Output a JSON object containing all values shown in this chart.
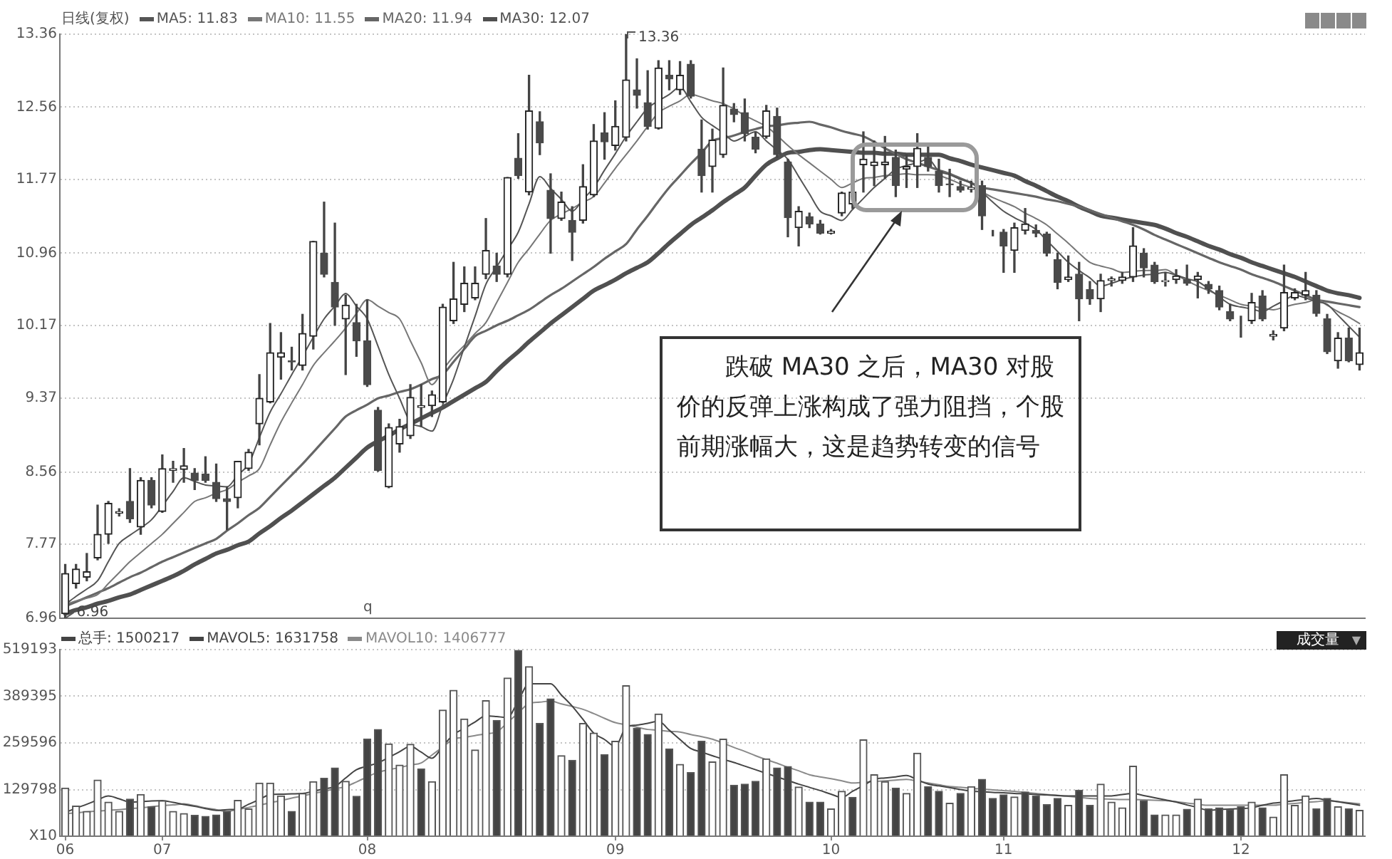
{
  "chart_data": [
    {
      "type": "candlestick",
      "title": "日线(复权)",
      "legend": "top left",
      "tick_labels": "y",
      "grid": "y",
      "categories": [
        "06",
        null,
        null,
        null,
        null,
        null,
        null,
        null,
        null,
        "07",
        null,
        null,
        null,
        null,
        null,
        null,
        null,
        null,
        null,
        null,
        null,
        null,
        null,
        null,
        null,
        null,
        null,
        null,
        "08",
        null,
        null,
        null,
        null,
        null,
        null,
        null,
        null,
        null,
        null,
        null,
        null,
        null,
        null,
        null,
        null,
        null,
        null,
        null,
        null,
        null,
        null,
        "09",
        null,
        null,
        null,
        null,
        null,
        null,
        null,
        null,
        null,
        null,
        null,
        null,
        null,
        null,
        null,
        null,
        null,
        null,
        null,
        "10",
        null,
        null,
        null,
        null,
        null,
        null,
        null,
        null,
        null,
        null,
        null,
        null,
        null,
        null,
        null,
        "11",
        null,
        null,
        null,
        null,
        null,
        null,
        null,
        null,
        null,
        null,
        null,
        null,
        null,
        null,
        null,
        null,
        null,
        null,
        null,
        null,
        null,
        "12",
        null,
        null,
        null,
        null,
        null,
        null,
        null,
        null,
        null,
        null,
        null
      ],
      "ylim": [
        6.96,
        13.36
      ],
      "yticks": [
        6.96,
        7.77,
        8.56,
        9.37,
        10.17,
        10.96,
        11.77,
        12.56,
        13.36
      ],
      "series": [
        {
          "ohlc": [
            [
              7.01,
              7.55,
              6.96,
              7.45
            ],
            [
              7.34,
              7.55,
              7.29,
              7.5
            ],
            [
              7.41,
              7.67,
              7.37,
              7.47
            ],
            [
              7.62,
              8.2,
              7.6,
              7.88
            ],
            [
              7.88,
              8.24,
              7.78,
              8.22
            ],
            [
              8.11,
              8.16,
              8.08,
              8.13
            ],
            [
              8.24,
              8.6,
              8.01,
              8.05
            ],
            [
              7.96,
              8.5,
              7.88,
              8.47
            ],
            [
              8.47,
              8.5,
              8.17,
              8.2
            ],
            [
              8.13,
              8.75,
              8.12,
              8.6
            ],
            [
              8.58,
              8.68,
              8.45,
              8.6
            ],
            [
              8.59,
              8.82,
              8.45,
              8.63
            ],
            [
              8.55,
              8.6,
              8.37,
              8.47
            ],
            [
              8.54,
              8.73,
              8.45,
              8.47
            ],
            [
              8.45,
              8.65,
              8.24,
              8.27
            ],
            [
              8.27,
              8.4,
              7.93,
              8.24
            ],
            [
              8.28,
              8.68,
              8.17,
              8.68
            ],
            [
              8.6,
              8.81,
              8.58,
              8.78
            ],
            [
              9.09,
              9.63,
              8.86,
              9.37
            ],
            [
              9.33,
              10.19,
              9.32,
              9.87
            ],
            [
              9.82,
              10.09,
              9.58,
              9.87
            ],
            [
              9.78,
              9.93,
              9.68,
              9.77
            ],
            [
              9.73,
              10.29,
              9.68,
              10.08
            ],
            [
              10.05,
              11.09,
              9.91,
              11.09
            ],
            [
              10.96,
              11.52,
              10.7,
              10.73
            ],
            [
              10.64,
              11.29,
              10.17,
              10.37
            ],
            [
              10.24,
              10.5,
              9.63,
              10.39
            ],
            [
              10.2,
              10.4,
              9.83,
              10.0
            ],
            [
              10.0,
              10.45,
              9.5,
              9.52
            ],
            [
              9.24,
              9.27,
              8.57,
              8.58
            ],
            [
              8.4,
              9.09,
              8.39,
              9.05
            ],
            [
              8.87,
              9.14,
              8.78,
              9.06
            ],
            [
              8.96,
              9.52,
              8.93,
              9.38
            ],
            [
              9.27,
              9.52,
              9.06,
              9.29
            ],
            [
              9.29,
              9.45,
              9.17,
              9.41
            ],
            [
              9.33,
              10.4,
              9.32,
              10.37
            ],
            [
              10.22,
              10.86,
              10.19,
              10.46
            ],
            [
              10.4,
              10.81,
              10.32,
              10.63
            ],
            [
              10.47,
              10.81,
              10.45,
              10.63
            ],
            [
              10.73,
              11.34,
              10.68,
              10.99
            ],
            [
              10.82,
              10.96,
              10.65,
              10.73
            ],
            [
              10.73,
              11.79,
              10.7,
              11.79
            ],
            [
              12.0,
              12.27,
              11.78,
              11.81
            ],
            [
              11.63,
              12.91,
              11.6,
              12.52
            ],
            [
              12.4,
              12.51,
              12.04,
              12.17
            ],
            [
              11.65,
              11.83,
              10.96,
              11.34
            ],
            [
              11.34,
              11.63,
              11.32,
              11.52
            ],
            [
              11.32,
              11.47,
              10.88,
              11.19
            ],
            [
              11.32,
              11.93,
              11.29,
              11.69
            ],
            [
              11.6,
              12.37,
              11.58,
              12.19
            ],
            [
              12.28,
              12.5,
              11.99,
              12.18
            ],
            [
              12.14,
              12.63,
              12.09,
              12.35
            ],
            [
              12.23,
              13.36,
              12.19,
              12.86
            ],
            [
              12.75,
              13.09,
              12.55,
              12.69
            ],
            [
              12.61,
              12.96,
              12.32,
              12.35
            ],
            [
              12.33,
              13.07,
              12.32,
              12.99
            ],
            [
              12.91,
              13.07,
              12.75,
              12.87
            ],
            [
              12.75,
              13.06,
              12.7,
              12.91
            ],
            [
              13.03,
              13.07,
              12.66,
              12.68
            ],
            [
              12.1,
              12.42,
              11.63,
              11.81
            ],
            [
              11.91,
              12.32,
              11.63,
              12.2
            ],
            [
              12.04,
              12.99,
              12.01,
              12.58
            ],
            [
              12.54,
              12.6,
              12.4,
              12.48
            ],
            [
              12.5,
              12.65,
              12.19,
              12.27
            ],
            [
              12.23,
              12.29,
              12.06,
              12.1
            ],
            [
              12.24,
              12.58,
              12.22,
              12.52
            ],
            [
              12.46,
              12.55,
              12.01,
              12.04
            ],
            [
              11.96,
              11.99,
              11.14,
              11.35
            ],
            [
              11.24,
              11.47,
              11.04,
              11.42
            ],
            [
              11.36,
              11.4,
              11.24,
              11.28
            ],
            [
              11.28,
              11.32,
              11.17,
              11.18
            ],
            [
              11.18,
              11.22,
              11.17,
              11.2
            ],
            [
              11.4,
              11.63,
              11.37,
              11.62
            ],
            [
              11.5,
              11.68,
              11.45,
              11.63
            ],
            [
              11.93,
              12.29,
              11.63,
              11.99
            ],
            [
              11.92,
              12.19,
              11.7,
              11.96
            ],
            [
              11.93,
              12.24,
              11.78,
              11.96
            ],
            [
              12.01,
              12.09,
              11.58,
              11.7
            ],
            [
              11.88,
              12.04,
              11.68,
              11.91
            ],
            [
              11.91,
              12.27,
              11.68,
              12.11
            ],
            [
              12.01,
              12.14,
              11.86,
              11.91
            ],
            [
              11.86,
              11.99,
              11.63,
              11.7
            ],
            [
              11.72,
              11.88,
              11.58,
              11.71
            ],
            [
              11.69,
              11.75,
              11.63,
              11.65
            ],
            [
              11.66,
              11.75,
              11.63,
              11.68
            ],
            [
              11.7,
              11.75,
              11.22,
              11.37
            ],
            [
              11.19,
              11.21,
              11.15,
              11.19
            ],
            [
              11.19,
              11.22,
              10.75,
              11.04
            ],
            [
              10.99,
              11.29,
              10.75,
              11.24
            ],
            [
              11.21,
              11.45,
              11.17,
              11.28
            ],
            [
              11.21,
              11.27,
              11.14,
              11.18
            ],
            [
              11.17,
              11.19,
              10.93,
              10.96
            ],
            [
              10.89,
              10.96,
              10.57,
              10.64
            ],
            [
              10.67,
              10.93,
              10.65,
              10.7
            ],
            [
              10.73,
              10.86,
              10.22,
              10.46
            ],
            [
              10.56,
              10.65,
              10.4,
              10.46
            ],
            [
              10.46,
              10.73,
              10.32,
              10.66
            ],
            [
              10.66,
              10.7,
              10.6,
              10.68
            ],
            [
              10.66,
              10.75,
              10.63,
              10.7
            ],
            [
              10.7,
              11.24,
              10.65,
              11.04
            ],
            [
              10.96,
              11.01,
              10.7,
              10.8
            ],
            [
              10.83,
              10.86,
              10.63,
              10.65
            ],
            [
              10.65,
              10.75,
              10.6,
              10.66
            ],
            [
              10.67,
              10.78,
              10.63,
              10.71
            ],
            [
              10.67,
              10.83,
              10.61,
              10.63
            ],
            [
              10.67,
              10.75,
              10.47,
              10.71
            ],
            [
              10.62,
              10.65,
              10.52,
              10.57
            ],
            [
              10.55,
              10.6,
              10.34,
              10.37
            ],
            [
              10.32,
              10.4,
              10.22,
              10.24
            ],
            [
              10.2,
              10.27,
              10.04,
              10.2
            ],
            [
              10.22,
              10.52,
              10.19,
              10.42
            ],
            [
              10.49,
              10.55,
              10.22,
              10.24
            ],
            [
              10.05,
              10.11,
              10.01,
              10.07
            ],
            [
              10.14,
              10.83,
              10.11,
              10.53
            ],
            [
              10.47,
              10.57,
              10.45,
              10.53
            ],
            [
              10.5,
              10.75,
              10.45,
              10.55
            ],
            [
              10.5,
              10.55,
              10.27,
              10.3
            ],
            [
              10.24,
              10.29,
              9.86,
              9.88
            ],
            [
              9.78,
              10.09,
              9.7,
              10.03
            ],
            [
              10.03,
              10.14,
              9.77,
              9.78
            ],
            [
              9.74,
              10.14,
              9.68,
              9.87
            ]
          ]
        },
        {
          "type": "line",
          "name": "MA5: 11.83",
          "color": "#555555",
          "values": [
            7.11,
            7.2,
            7.28,
            7.37,
            7.58,
            7.78,
            7.87,
            7.95,
            8.04,
            8.19,
            8.35,
            8.5,
            8.46,
            8.42,
            8.41,
            8.4,
            8.53,
            8.65,
            8.94,
            9.22,
            9.42,
            9.63,
            9.83,
            10.04,
            10.24,
            10.38,
            10.52,
            10.38,
            10.24,
            9.94,
            9.63,
            9.37,
            9.11,
            9.06,
            9.01,
            9.3,
            9.58,
            9.93,
            10.27,
            10.62,
            10.81,
            11.0,
            11.19,
            11.5,
            11.8,
            11.67,
            11.55,
            11.42,
            11.55,
            11.68,
            11.87,
            12.05,
            12.24,
            12.4,
            12.55,
            12.63,
            12.7,
            12.78,
            12.62,
            12.45,
            12.36,
            12.28,
            12.19,
            12.24,
            12.29,
            12.19,
            12.09,
            11.99,
            11.8,
            11.61,
            11.42,
            11.37,
            11.32,
            11.44,
            11.56,
            11.68,
            11.78,
            11.88,
            11.92,
            11.95,
            11.99,
            11.86,
            11.82,
            11.77,
            11.73,
            11.63,
            11.52,
            11.42,
            11.35,
            11.29,
            11.22,
            11.1,
            10.98,
            10.86,
            10.77,
            10.69,
            10.6,
            10.63,
            10.67,
            10.7,
            10.72,
            10.73,
            10.75,
            10.72,
            10.68,
            10.65,
            10.57,
            10.48,
            10.4,
            10.37,
            10.35,
            10.32,
            10.38,
            10.44,
            10.5,
            10.47,
            10.43,
            10.4,
            10.28,
            10.16,
            10.04
          ]
        },
        {
          "type": "line",
          "name": "MA10: 11.55",
          "color": "#777777",
          "values": [
            7.11,
            7.15,
            7.18,
            7.22,
            7.34,
            7.46,
            7.58,
            7.68,
            7.78,
            7.88,
            8.0,
            8.12,
            8.24,
            8.28,
            8.33,
            8.37,
            8.45,
            8.52,
            8.6,
            8.86,
            9.11,
            9.32,
            9.52,
            9.73,
            9.87,
            10.0,
            10.14,
            10.3,
            10.45,
            10.38,
            10.31,
            10.24,
            10.0,
            9.76,
            9.52,
            9.68,
            9.83,
            9.95,
            10.08,
            10.2,
            10.42,
            10.64,
            10.86,
            11.01,
            11.17,
            11.32,
            11.39,
            11.45,
            11.52,
            11.58,
            11.73,
            11.89,
            12.04,
            12.19,
            12.35,
            12.5,
            12.57,
            12.63,
            12.7,
            12.67,
            12.63,
            12.6,
            12.54,
            12.47,
            12.41,
            12.35,
            12.25,
            12.14,
            12.04,
            11.95,
            11.86,
            11.77,
            11.68,
            11.73,
            11.78,
            11.79,
            11.81,
            11.82,
            11.83,
            11.82,
            11.82,
            11.81,
            11.77,
            11.72,
            11.68,
            11.63,
            11.57,
            11.52,
            11.47,
            11.4,
            11.34,
            11.27,
            11.17,
            11.07,
            10.96,
            10.86,
            10.82,
            10.79,
            10.75,
            10.76,
            10.77,
            10.77,
            10.78,
            10.72,
            10.66,
            10.6,
            10.55,
            10.5,
            10.45,
            10.4,
            10.38,
            10.36,
            10.34,
            10.37,
            10.4,
            10.42,
            10.45,
            10.39,
            10.32,
            10.26,
            10.19
          ]
        },
        {
          "type": "line",
          "name": "MA20: 11.94",
          "color": "#666666",
          "values": [
            7.09,
            7.14,
            7.19,
            7.24,
            7.29,
            7.35,
            7.41,
            7.46,
            7.52,
            7.58,
            7.63,
            7.68,
            7.73,
            7.78,
            7.83,
            7.92,
            8.0,
            8.09,
            8.17,
            8.29,
            8.41,
            8.53,
            8.65,
            8.78,
            8.91,
            9.04,
            9.17,
            9.24,
            9.3,
            9.37,
            9.4,
            9.44,
            9.47,
            9.52,
            9.58,
            9.63,
            9.77,
            9.91,
            10.05,
            10.11,
            10.17,
            10.22,
            10.28,
            10.34,
            10.42,
            10.5,
            10.57,
            10.65,
            10.73,
            10.81,
            10.9,
            10.98,
            11.06,
            11.22,
            11.37,
            11.53,
            11.68,
            11.81,
            11.94,
            12.06,
            12.19,
            12.22,
            12.25,
            12.29,
            12.32,
            12.35,
            12.36,
            12.38,
            12.39,
            12.4,
            12.37,
            12.34,
            12.3,
            12.27,
            12.24,
            12.18,
            12.11,
            12.05,
            11.99,
            11.95,
            11.91,
            11.87,
            11.83,
            11.78,
            11.73,
            11.68,
            11.66,
            11.64,
            11.62,
            11.6,
            11.58,
            11.55,
            11.53,
            11.5,
            11.47,
            11.43,
            11.39,
            11.35,
            11.31,
            11.27,
            11.22,
            11.16,
            11.11,
            11.06,
            11.01,
            10.96,
            10.91,
            10.86,
            10.82,
            10.78,
            10.73,
            10.69,
            10.65,
            10.6,
            10.55,
            10.5,
            10.45,
            10.43,
            10.41,
            10.39,
            10.37
          ]
        },
        {
          "type": "line",
          "name": "MA30: 12.07",
          "color": "#505050",
          "values": [
            7.01,
            7.05,
            7.08,
            7.12,
            7.15,
            7.19,
            7.22,
            7.27,
            7.32,
            7.37,
            7.42,
            7.48,
            7.55,
            7.61,
            7.67,
            7.71,
            7.76,
            7.8,
            7.89,
            7.97,
            8.06,
            8.14,
            8.23,
            8.32,
            8.41,
            8.5,
            8.61,
            8.72,
            8.83,
            8.9,
            8.96,
            9.03,
            9.09,
            9.15,
            9.21,
            9.27,
            9.34,
            9.41,
            9.48,
            9.55,
            9.67,
            9.78,
            9.88,
            9.99,
            10.09,
            10.19,
            10.28,
            10.37,
            10.46,
            10.55,
            10.61,
            10.67,
            10.74,
            10.8,
            10.86,
            10.96,
            11.07,
            11.17,
            11.27,
            11.35,
            11.43,
            11.52,
            11.6,
            11.68,
            11.81,
            11.93,
            12.0,
            12.06,
            12.07,
            12.09,
            12.1,
            12.09,
            12.08,
            12.07,
            12.06,
            12.06,
            12.05,
            12.05,
            12.04,
            12.04,
            12.04,
            12.04,
            12.0,
            11.97,
            11.93,
            11.9,
            11.87,
            11.84,
            11.81,
            11.75,
            11.7,
            11.64,
            11.58,
            11.53,
            11.47,
            11.42,
            11.37,
            11.35,
            11.33,
            11.31,
            11.29,
            11.27,
            11.23,
            11.18,
            11.14,
            11.09,
            11.04,
            11.0,
            10.95,
            10.91,
            10.86,
            10.82,
            10.78,
            10.74,
            10.7,
            10.65,
            10.6,
            10.55,
            10.52,
            10.5,
            10.47
          ]
        }
      ],
      "annotations": [
        "13.36",
        {
          "text": "6.96",
          "x": "06",
          "y": 6.96
        },
        "跌破 MA30 之后，MA30 对股价的反弹上涨构成了强力阻挡，个股前期涨幅大，这是趋势转变的信号",
        "q"
      ]
    },
    {
      "type": "bar",
      "legend": "top left",
      "grid": "y",
      "categories": [
        "06",
        null,
        null,
        null,
        null,
        null,
        null,
        null,
        null,
        "07",
        null,
        null,
        null,
        null,
        null,
        null,
        null,
        null,
        null,
        null,
        null,
        null,
        null,
        null,
        null,
        null,
        null,
        null,
        "08",
        null,
        null,
        null,
        null,
        null,
        null,
        null,
        null,
        null,
        null,
        null,
        null,
        null,
        null,
        null,
        null,
        null,
        null,
        null,
        null,
        null,
        null,
        "09",
        null,
        null,
        null,
        null,
        null,
        null,
        null,
        null,
        null,
        null,
        null,
        null,
        null,
        null,
        null,
        null,
        null,
        null,
        null,
        "10",
        null,
        null,
        null,
        null,
        null,
        null,
        null,
        null,
        null,
        null,
        null,
        null,
        null,
        null,
        null,
        "11",
        null,
        null,
        null,
        null,
        null,
        null,
        null,
        null,
        null,
        null,
        null,
        null,
        null,
        null,
        null,
        null,
        null,
        null,
        null,
        null,
        null,
        "12",
        null,
        null,
        null,
        null,
        null,
        null,
        null,
        null,
        null,
        null,
        null
      ],
      "ylim": [
        0,
        519193
      ],
      "yticks": [
        {
          "value": 0,
          "label": "X10"
        },
        129798,
        259596,
        389395,
        519193
      ],
      "series": [
        {
          "name": "总手: 1500217",
          "color": "#444444",
          "values": [
            134000,
            84000,
            69000,
            156000,
            95000,
            69000,
            103000,
            116000,
            82000,
            99000,
            69000,
            63000,
            58000,
            55000,
            59000,
            69000,
            100000,
            76000,
            148000,
            148000,
            112000,
            69000,
            119000,
            152000,
            161000,
            190000,
            153000,
            111000,
            270000,
            297000,
            257000,
            198000,
            256000,
            187000,
            152000,
            351000,
            406000,
            326000,
            240000,
            377000,
            322000,
            440000,
            517000,
            472000,
            314000,
            382000,
            224000,
            211000,
            314000,
            287000,
            227000,
            264000,
            419000,
            300000,
            283000,
            340000,
            243000,
            200000,
            177000,
            264000,
            207000,
            270000,
            142000,
            145000,
            153000,
            215000,
            190000,
            194000,
            137000,
            95000,
            95000,
            76000,
            125000,
            108000,
            268000,
            171000,
            152000,
            134000,
            119000,
            231000,
            138000,
            125000,
            92000,
            119000,
            138000,
            158000,
            105000,
            115000,
            109000,
            123000,
            112000,
            88000,
            105000,
            86000,
            128000,
            86000,
            145000,
            95000,
            79000,
            195000,
            99000,
            59000,
            59000,
            59000,
            75000,
            103000,
            76000,
            79000,
            74000,
            82000,
            95000,
            79000,
            53000,
            171000,
            86000,
            112000,
            76000,
            105000,
            82000,
            76000,
            72000
          ],
          "colors": [
            "#ffffff",
            "#ffffff",
            "#ffffff",
            "#ffffff",
            "#ffffff",
            "#ffffff",
            "#444444",
            "#ffffff",
            "#444444",
            "#ffffff",
            "#ffffff",
            "#ffffff",
            "#444444",
            "#444444",
            "#444444",
            "#444444",
            "#ffffff",
            "#ffffff",
            "#ffffff",
            "#ffffff",
            "#ffffff",
            "#444444",
            "#ffffff",
            "#ffffff",
            "#444444",
            "#444444",
            "#ffffff",
            "#444444",
            "#444444",
            "#444444",
            "#ffffff",
            "#ffffff",
            "#ffffff",
            "#444444",
            "#ffffff",
            "#ffffff",
            "#ffffff",
            "#ffffff",
            "#ffffff",
            "#ffffff",
            "#444444",
            "#ffffff",
            "#444444",
            "#ffffff",
            "#444444",
            "#444444",
            "#ffffff",
            "#444444",
            "#ffffff",
            "#ffffff",
            "#444444",
            "#ffffff",
            "#ffffff",
            "#444444",
            "#444444",
            "#ffffff",
            "#444444",
            "#ffffff",
            "#444444",
            "#444444",
            "#ffffff",
            "#ffffff",
            "#444444",
            "#444444",
            "#444444",
            "#ffffff",
            "#444444",
            "#444444",
            "#ffffff",
            "#444444",
            "#444444",
            "#ffffff",
            "#ffffff",
            "#444444",
            "#ffffff",
            "#ffffff",
            "#ffffff",
            "#444444",
            "#ffffff",
            "#ffffff",
            "#444444",
            "#444444",
            "#ffffff",
            "#444444",
            "#ffffff",
            "#444444",
            "#444444",
            "#444444",
            "#ffffff",
            "#444444",
            "#444444",
            "#444444",
            "#444444",
            "#ffffff",
            "#444444",
            "#444444",
            "#ffffff",
            "#ffffff",
            "#ffffff",
            "#ffffff",
            "#444444",
            "#444444",
            "#ffffff",
            "#ffffff",
            "#444444",
            "#ffffff",
            "#444444",
            "#444444",
            "#444444",
            "#444444",
            "#ffffff",
            "#444444",
            "#ffffff",
            "#ffffff",
            "#ffffff",
            "#ffffff",
            "#444444",
            "#444444",
            "#ffffff",
            "#444444",
            "#ffffff"
          ]
        },
        {
          "type": "line",
          "name": "MAVOL5: 1631758",
          "color": "#444444",
          "values": [
            66000,
            78000,
            89000,
            101000,
            112000,
            104000,
            95000,
            96000,
            98000,
            99000,
            94000,
            88000,
            83000,
            77000,
            72000,
            74000,
            75000,
            89000,
            102000,
            116000,
            117000,
            118000,
            119000,
            125000,
            132000,
            138000,
            162000,
            185000,
            195000,
            204000,
            219000,
            235000,
            250000,
            234000,
            217000,
            250000,
            283000,
            300000,
            318000,
            335000,
            333000,
            330000,
            377000,
            424000,
            424000,
            424000,
            393000,
            362000,
            325000,
            287000,
            269000,
            250000,
            303000,
            309000,
            314000,
            320000,
            295000,
            269000,
            244000,
            234000,
            224000,
            214000,
            205000,
            195000,
            185000,
            175000,
            165000,
            155000,
            145000,
            136000,
            127000,
            117000,
            108000,
            125000,
            141000,
            158000,
            162000,
            165000,
            169000,
            157000,
            145000,
            140000,
            135000,
            130000,
            125000,
            124000,
            122000,
            121000,
            119000,
            118000,
            116000,
            115000,
            113000,
            112000,
            112000,
            112000,
            112000,
            112000,
            116000,
            119000,
            113000,
            107000,
            101000,
            95000,
            87000,
            80000,
            72000,
            74000,
            76000,
            77000,
            79000,
            86000,
            92000,
            95000,
            99000,
            102000,
            105000,
            100000,
            96000,
            91000,
            86000
          ]
        },
        {
          "type": "line",
          "name": "MAVOL10: 1406777",
          "color": "#8a8a8a",
          "values": [
            63000,
            65000,
            68000,
            70000,
            72000,
            74000,
            77000,
            79000,
            82000,
            85000,
            87000,
            90000,
            85000,
            79000,
            74000,
            69000,
            75000,
            80000,
            86000,
            93000,
            99000,
            106000,
            112000,
            119000,
            125000,
            132000,
            138000,
            151000,
            165000,
            178000,
            185000,
            191000,
            198000,
            204000,
            226000,
            248000,
            270000,
            275000,
            280000,
            285000,
            290000,
            316000,
            343000,
            369000,
            373000,
            376000,
            368000,
            361000,
            353000,
            341000,
            328000,
            316000,
            310000,
            303000,
            297000,
            295000,
            292000,
            290000,
            283000,
            277000,
            270000,
            259000,
            247000,
            236000,
            224000,
            213000,
            203000,
            192000,
            182000,
            171000,
            165000,
            160000,
            154000,
            148000,
            150000,
            152000,
            154000,
            156000,
            158000,
            153000,
            148000,
            143000,
            138000,
            136000,
            134000,
            131000,
            129000,
            127000,
            125000,
            122000,
            119000,
            116000,
            114000,
            111000,
            108000,
            105000,
            104000,
            103000,
            102000,
            102000,
            101000,
            100000,
            99000,
            96000,
            92000,
            89000,
            86000,
            86000,
            86000,
            86000,
            86000,
            86000,
            86000,
            89000,
            91000,
            94000,
            96000,
            99000,
            96000,
            93000,
            90000
          ]
        }
      ],
      "annotations": [
        "成交量",
        "▼"
      ]
    }
  ]
}
